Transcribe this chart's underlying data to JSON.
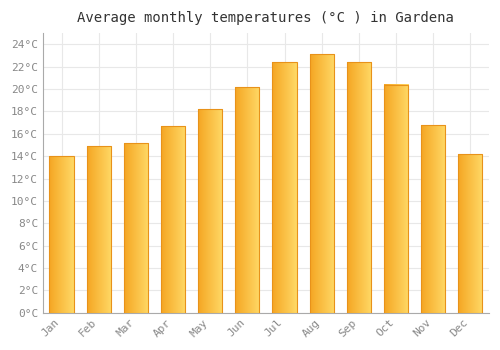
{
  "months": [
    "Jan",
    "Feb",
    "Mar",
    "Apr",
    "May",
    "Jun",
    "Jul",
    "Aug",
    "Sep",
    "Oct",
    "Nov",
    "Dec"
  ],
  "temperatures": [
    14.0,
    14.9,
    15.2,
    16.7,
    18.2,
    20.2,
    22.4,
    23.1,
    22.4,
    20.4,
    16.8,
    14.2
  ],
  "bar_color_left": "#F5A623",
  "bar_color_right": "#FFD966",
  "bar_edge_color": "#E8921A",
  "background_color": "#FFFFFF",
  "grid_color": "#E8E8E8",
  "title": "Average monthly temperatures (°C ) in Gardena",
  "title_fontsize": 10,
  "tick_label_color": "#888888",
  "axis_label_fontsize": 8,
  "ylim": [
    0,
    25
  ],
  "yticks": [
    0,
    2,
    4,
    6,
    8,
    10,
    12,
    14,
    16,
    18,
    20,
    22,
    24
  ],
  "ytick_labels": [
    "0°C",
    "2°C",
    "4°C",
    "6°C",
    "8°C",
    "10°C",
    "12°C",
    "14°C",
    "16°C",
    "18°C",
    "20°C",
    "22°C",
    "24°C"
  ]
}
